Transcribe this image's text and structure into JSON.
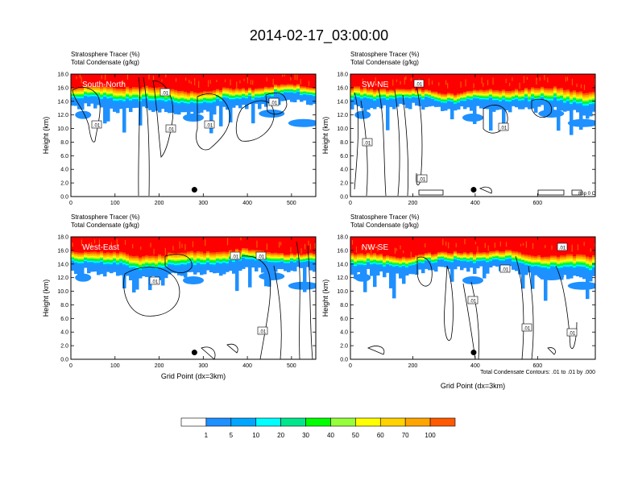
{
  "figure": {
    "title": "2014-02-17_03:00:00",
    "contour_note": "Total Condensate Contours: .01 to .01 by .000",
    "corner_note": "86p 0 C"
  },
  "palette": [
    "#ffffff",
    "#1e90ff",
    "#00a6ff",
    "#00ffff",
    "#00e68c",
    "#00ff00",
    "#96ff3c",
    "#ffff00",
    "#ffd200",
    "#ffa500",
    "#ff5a00",
    "#ff0000"
  ],
  "colorbar": {
    "labels": [
      "1",
      "5",
      "10",
      "20",
      "30",
      "40",
      "50",
      "60",
      "70",
      "100"
    ]
  },
  "chart_data": [
    {
      "type": "heatmap",
      "panel": "South-North",
      "title_line1": "Stratosphere Tracer   (%)",
      "title_line2": "Total Condensate   (g/kg)",
      "ylabel": "Height (km)",
      "xlabel": "",
      "xlim": [
        0,
        555
      ],
      "ylim": [
        0,
        18
      ],
      "xticks": [
        "0",
        "100",
        "200",
        "300",
        "400",
        "500"
      ],
      "yticks": [
        "0.0",
        "2.0",
        "4.0",
        "6.0",
        "8.0",
        "10.0",
        "12.0",
        "14.0",
        "16.0",
        "18.0"
      ],
      "marker_x": 280,
      "contour_labels": [
        ".01",
        ".01",
        ".01",
        ".01",
        ".01"
      ]
    },
    {
      "type": "heatmap",
      "panel": "SW-NE",
      "title_line1": "Stratosphere Tracer   (%)",
      "title_line2": "Total Condensate   (g/kg)",
      "ylabel": "Height (km)",
      "xlabel": "",
      "xlim": [
        0,
        785
      ],
      "ylim": [
        0,
        18
      ],
      "xticks": [
        "0",
        "200",
        "400",
        "600"
      ],
      "yticks": [
        "0.0",
        "2.0",
        "4.0",
        "6.0",
        "8.0",
        "10.0",
        "12.0",
        "14.0",
        "16.0",
        "18.0"
      ],
      "marker_x": 395,
      "contour_labels": [
        ".01",
        ".01",
        ".01",
        ".01"
      ]
    },
    {
      "type": "heatmap",
      "panel": "West-East",
      "title_line1": "Stratosphere Tracer   (%)",
      "title_line2": "Total Condensate   (g/kg)",
      "ylabel": "Height (km)",
      "xlabel": "Grid Point (dx=3km)",
      "xlim": [
        0,
        555
      ],
      "ylim": [
        0,
        18
      ],
      "xticks": [
        "0",
        "100",
        "200",
        "300",
        "400",
        "500"
      ],
      "yticks": [
        "0.0",
        "2.0",
        "4.0",
        "6.0",
        "8.0",
        "10.0",
        "12.0",
        "14.0",
        "16.0",
        "18.0"
      ],
      "marker_x": 280,
      "contour_labels": [
        ".01",
        ".01",
        ".01",
        ".01"
      ]
    },
    {
      "type": "heatmap",
      "panel": "NW-SE",
      "title_line1": "Stratosphere Tracer   (%)",
      "title_line2": "Total Condensate   (g/kg)",
      "ylabel": "Height (km)",
      "xlabel": "Grid Point (dx=3km)",
      "xlim": [
        0,
        785
      ],
      "ylim": [
        0,
        18
      ],
      "xticks": [
        "0",
        "200",
        "400",
        "600"
      ],
      "yticks": [
        "0.0",
        "2.0",
        "4.0",
        "6.0",
        "8.0",
        "10.0",
        "12.0",
        "14.0",
        "16.0",
        "18.0"
      ],
      "marker_x": 395,
      "contour_labels": [
        ".01",
        ".01",
        ".01",
        ".01",
        ".01"
      ]
    }
  ]
}
